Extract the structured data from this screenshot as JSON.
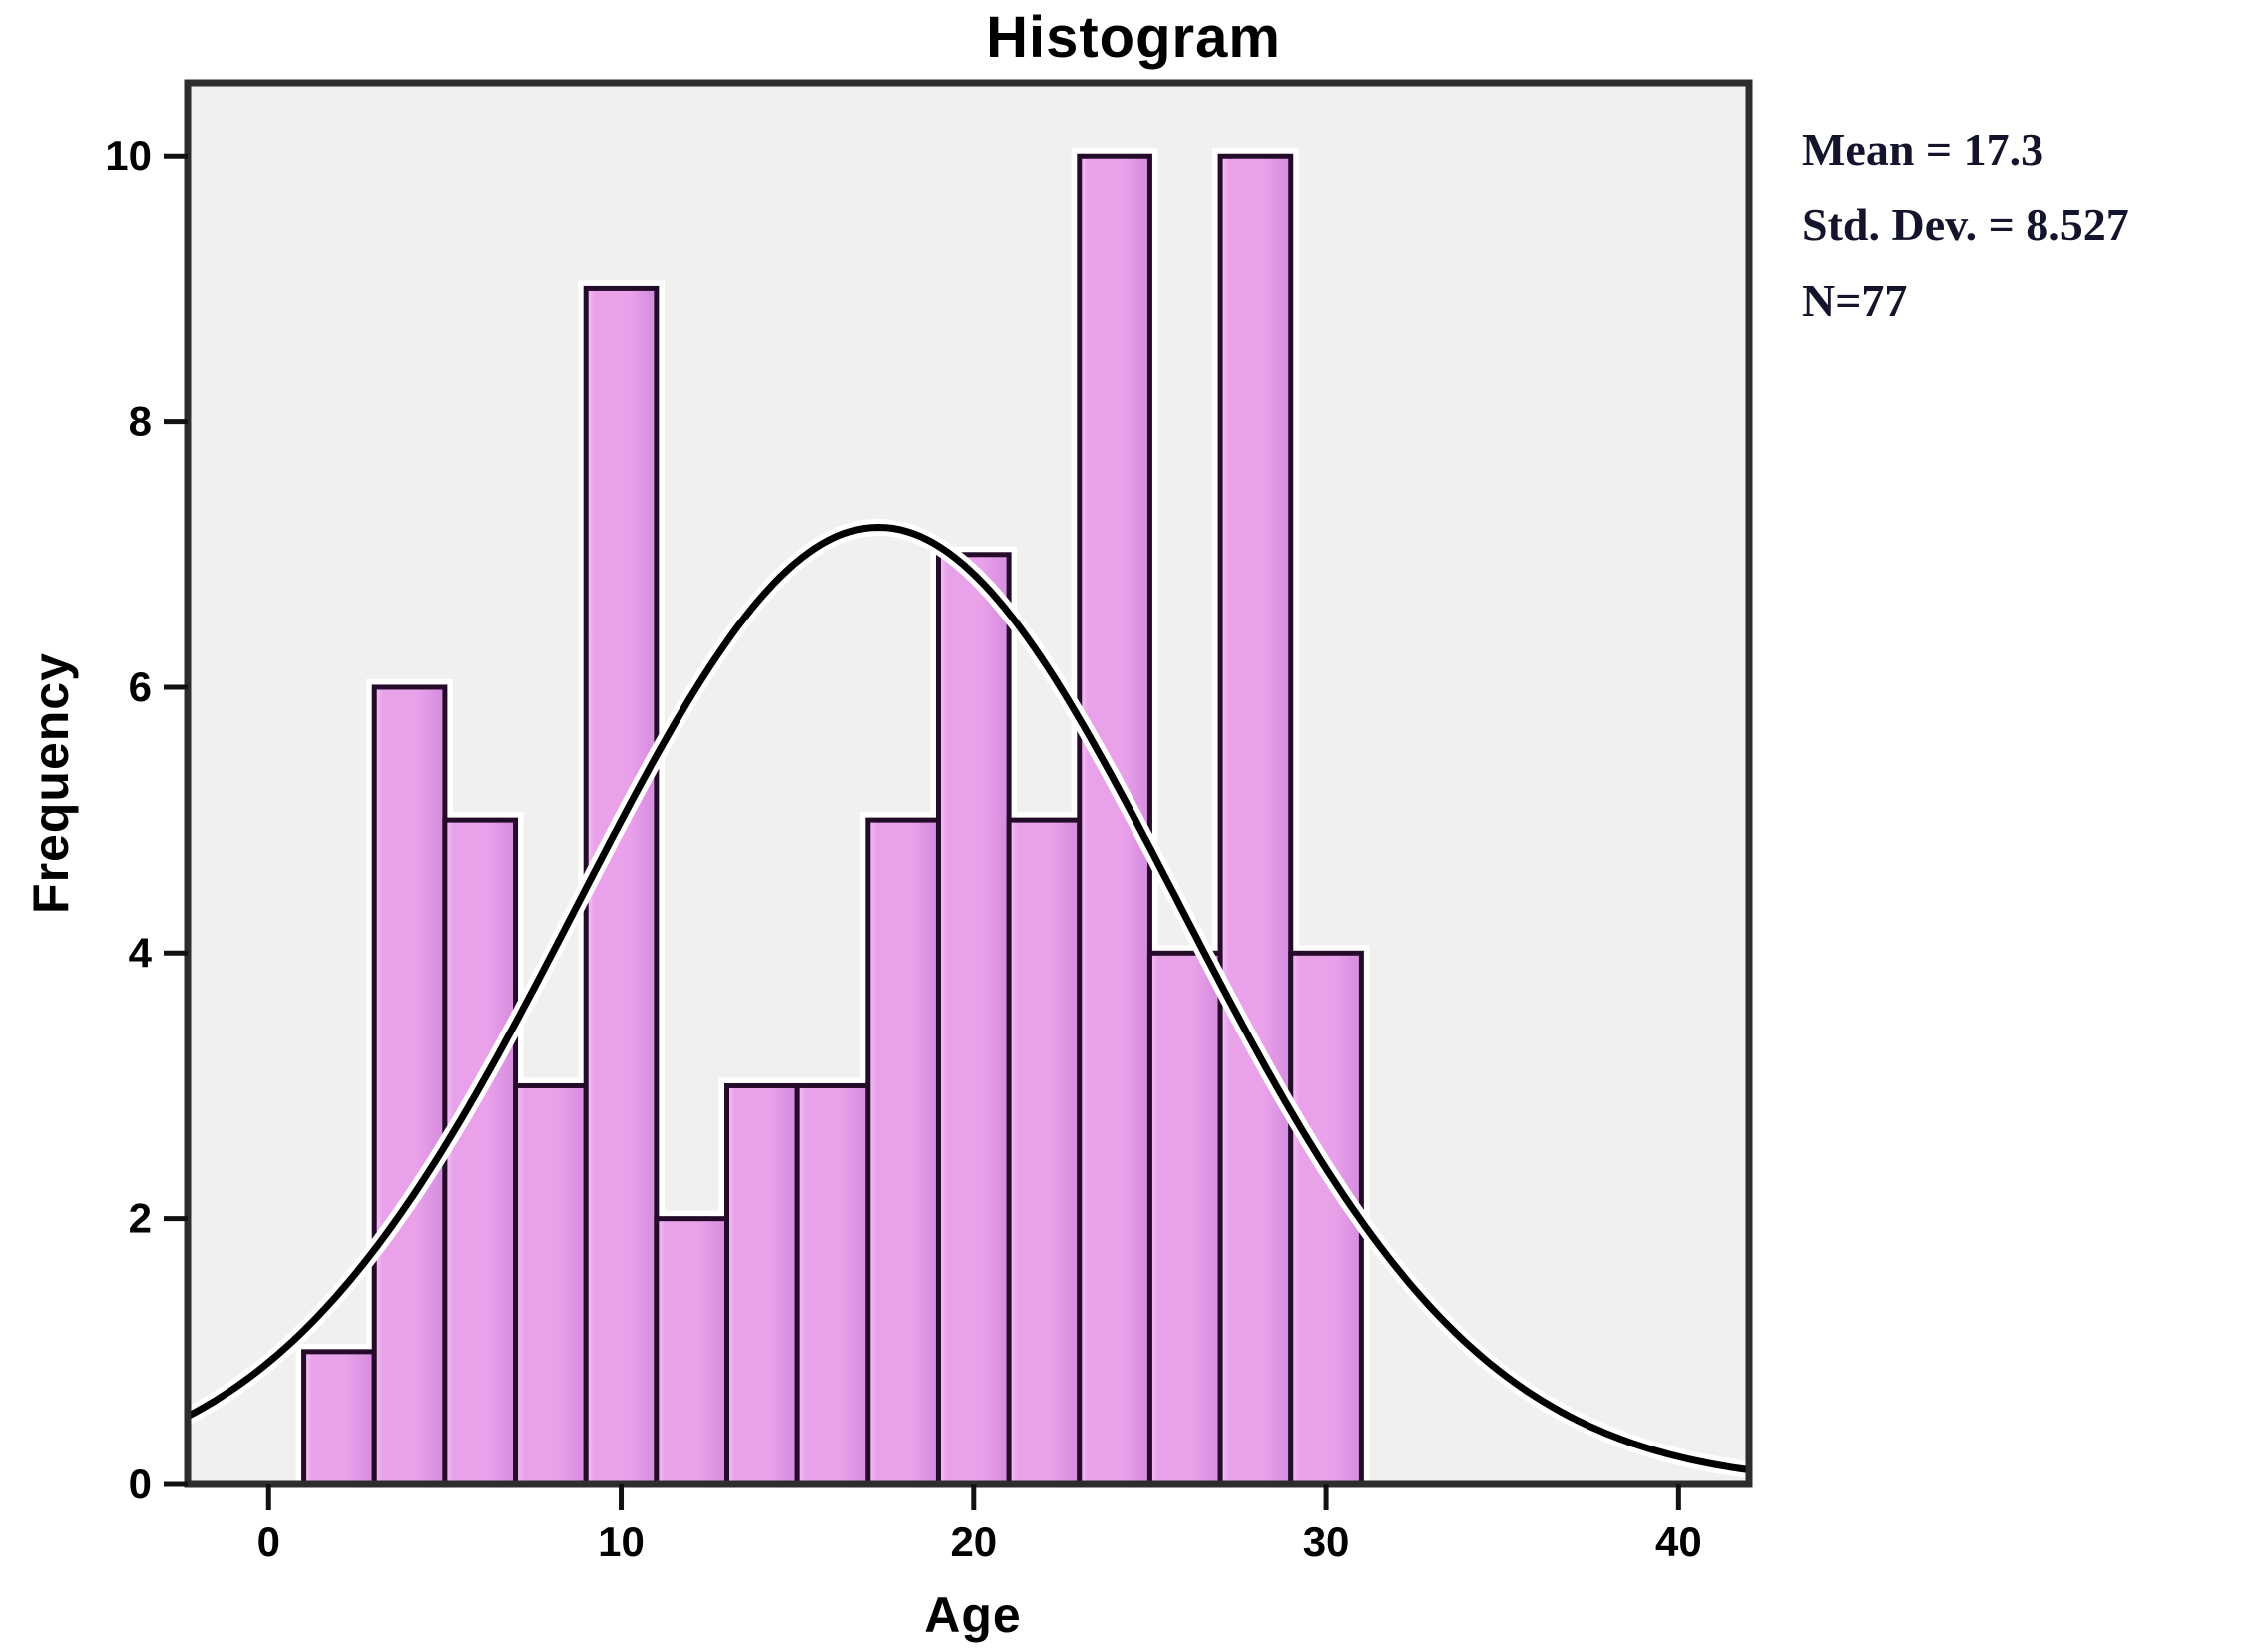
{
  "page": {
    "background": "#ffffff"
  },
  "chart_data": {
    "type": "bar",
    "subtype": "histogram-with-normal-curve",
    "title": "Histogram",
    "xlabel": "Age",
    "ylabel": "Frequency",
    "bin_start": 1,
    "bin_width": 2,
    "bin_edges": [
      1,
      3,
      5,
      7,
      9,
      11,
      13,
      15,
      17,
      19,
      21,
      23,
      25,
      27,
      29,
      31
    ],
    "frequencies": [
      1,
      6,
      5,
      3,
      9,
      2,
      3,
      3,
      5,
      7,
      5,
      10,
      4,
      10,
      4
    ],
    "x_ticks": [
      0,
      10,
      20,
      30,
      40
    ],
    "y_ticks": [
      0,
      2,
      4,
      6,
      8,
      10
    ],
    "x_range": [
      -2.3,
      42
    ],
    "y_range": [
      0,
      10.55
    ],
    "grid": false,
    "legend_position": "none",
    "normal_curve": {
      "mean": 17.3,
      "std_dev": 8.527,
      "n": 77
    },
    "stats_lines": [
      "Mean = 17.3",
      "Std. Dev. = 8.527",
      "N=77"
    ],
    "colors": {
      "bar_fill": "#e9a2ea",
      "bar_fill_light": "#f6c6f6",
      "bar_fill_dark": "#d88fe0",
      "bar_edge": "#250b2a",
      "halo": "#ffffff",
      "plot_bg": "#f0f0ef",
      "frame": "#2d2d2d",
      "tick": "#111111",
      "curve": "#000000",
      "text": "#000000",
      "stats_text": "#14142c"
    }
  }
}
